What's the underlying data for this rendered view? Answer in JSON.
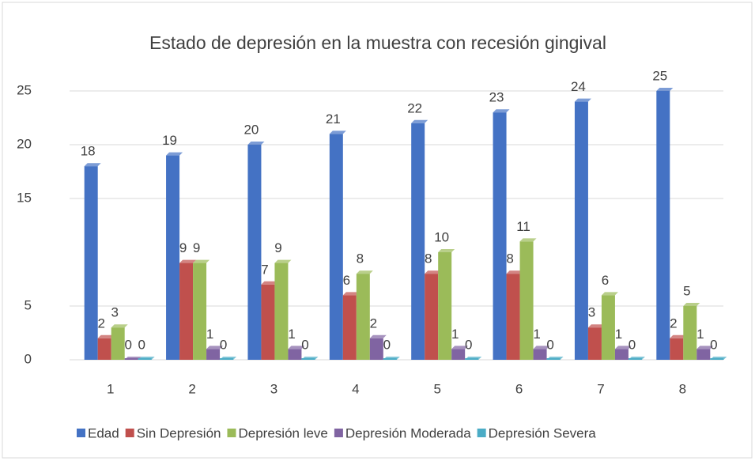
{
  "chart_data": {
    "type": "bar",
    "title": "Estado de depresión en la muestra con recesión gingival",
    "categories": [
      "1",
      "2",
      "3",
      "4",
      "5",
      "6",
      "7",
      "8"
    ],
    "series": [
      {
        "name": "Edad",
        "color": "#4472c4",
        "values": [
          18,
          19,
          20,
          21,
          22,
          23,
          24,
          25
        ]
      },
      {
        "name": "Sin Depresión",
        "color": "#c0504d",
        "values": [
          2,
          9,
          7,
          6,
          8,
          8,
          3,
          2
        ]
      },
      {
        "name": "Depresión leve",
        "color": "#9bbb59",
        "values": [
          3,
          9,
          9,
          8,
          10,
          11,
          6,
          5
        ]
      },
      {
        "name": "Depresión Moderada",
        "color": "#8064a2",
        "values": [
          0,
          1,
          1,
          2,
          1,
          1,
          1,
          1
        ]
      },
      {
        "name": "Depresión Severa",
        "color": "#4bacc6",
        "values": [
          0,
          0,
          0,
          0,
          0,
          0,
          0,
          0
        ]
      }
    ],
    "ylim": [
      0,
      25
    ],
    "yticks": [
      0,
      5,
      15,
      20,
      25
    ],
    "grid": true,
    "legend": "bottom"
  }
}
